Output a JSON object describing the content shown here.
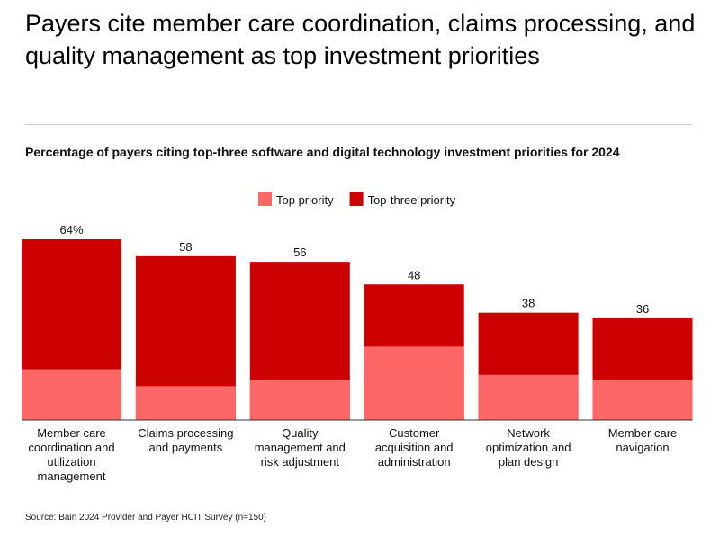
{
  "chart_data": {
    "type": "bar",
    "title": "Payers cite member care coordination, claims processing, and quality management as top investment priorities",
    "subtitle": "Percentage of payers citing top-three software and digital technology investment priorities for 2024",
    "categories": [
      "Member care coordination and utilization management",
      "Claims processing and payments",
      "Quality management and risk adjustment",
      "Customer acquisition and administration",
      "Network optimization and plan design",
      "Member care navigation"
    ],
    "series": [
      {
        "name": "Top-three priority",
        "color": "#cc0000",
        "values": [
          64,
          58,
          56,
          48,
          38,
          36
        ],
        "value_labels": [
          "64%",
          "58",
          "56",
          "48",
          "38",
          "36"
        ]
      },
      {
        "name": "Top priority",
        "color": "#ff6666",
        "values": [
          18,
          12,
          14,
          26,
          16,
          14
        ]
      }
    ],
    "legend_order": [
      "Top priority",
      "Top-three priority"
    ],
    "source": "Source: Bain 2024 Provider and Payer HCIT Survey (n=150)"
  }
}
